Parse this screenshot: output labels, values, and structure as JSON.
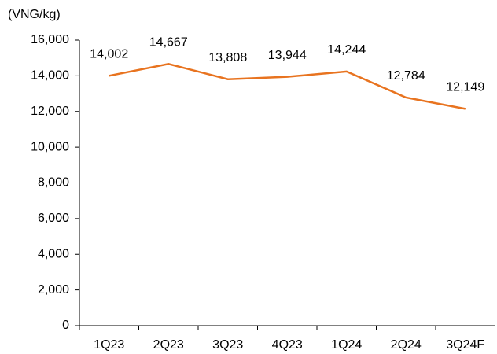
{
  "chart_data": {
    "type": "line",
    "y_label": "(VNG/kg)",
    "categories": [
      "1Q23",
      "2Q23",
      "3Q23",
      "4Q23",
      "1Q24",
      "2Q24",
      "3Q24F"
    ],
    "series": [
      {
        "name": null,
        "color": "#e8731f",
        "values": [
          14002,
          14667,
          13808,
          13944,
          14244,
          12784,
          12149
        ],
        "value_labels": [
          "14,002",
          "14,667",
          "13,808",
          "13,944",
          "14,244",
          "12,784",
          "12,149"
        ]
      }
    ],
    "ylim": [
      0,
      16000
    ],
    "yticks": [
      0,
      {
        "value": 2000,
        "label": "2,000"
      },
      {
        "value": 4000,
        "label": "4,000"
      },
      {
        "value": 6000,
        "label": "6,000"
      },
      {
        "value": 8000,
        "label": "8,000"
      },
      {
        "value": 10000,
        "label": "10,000"
      },
      {
        "value": 12000,
        "label": "12,000"
      },
      {
        "value": 14000,
        "label": "14,000"
      },
      {
        "value": 16000,
        "label": "16,000"
      }
    ],
    "grid": false
  }
}
